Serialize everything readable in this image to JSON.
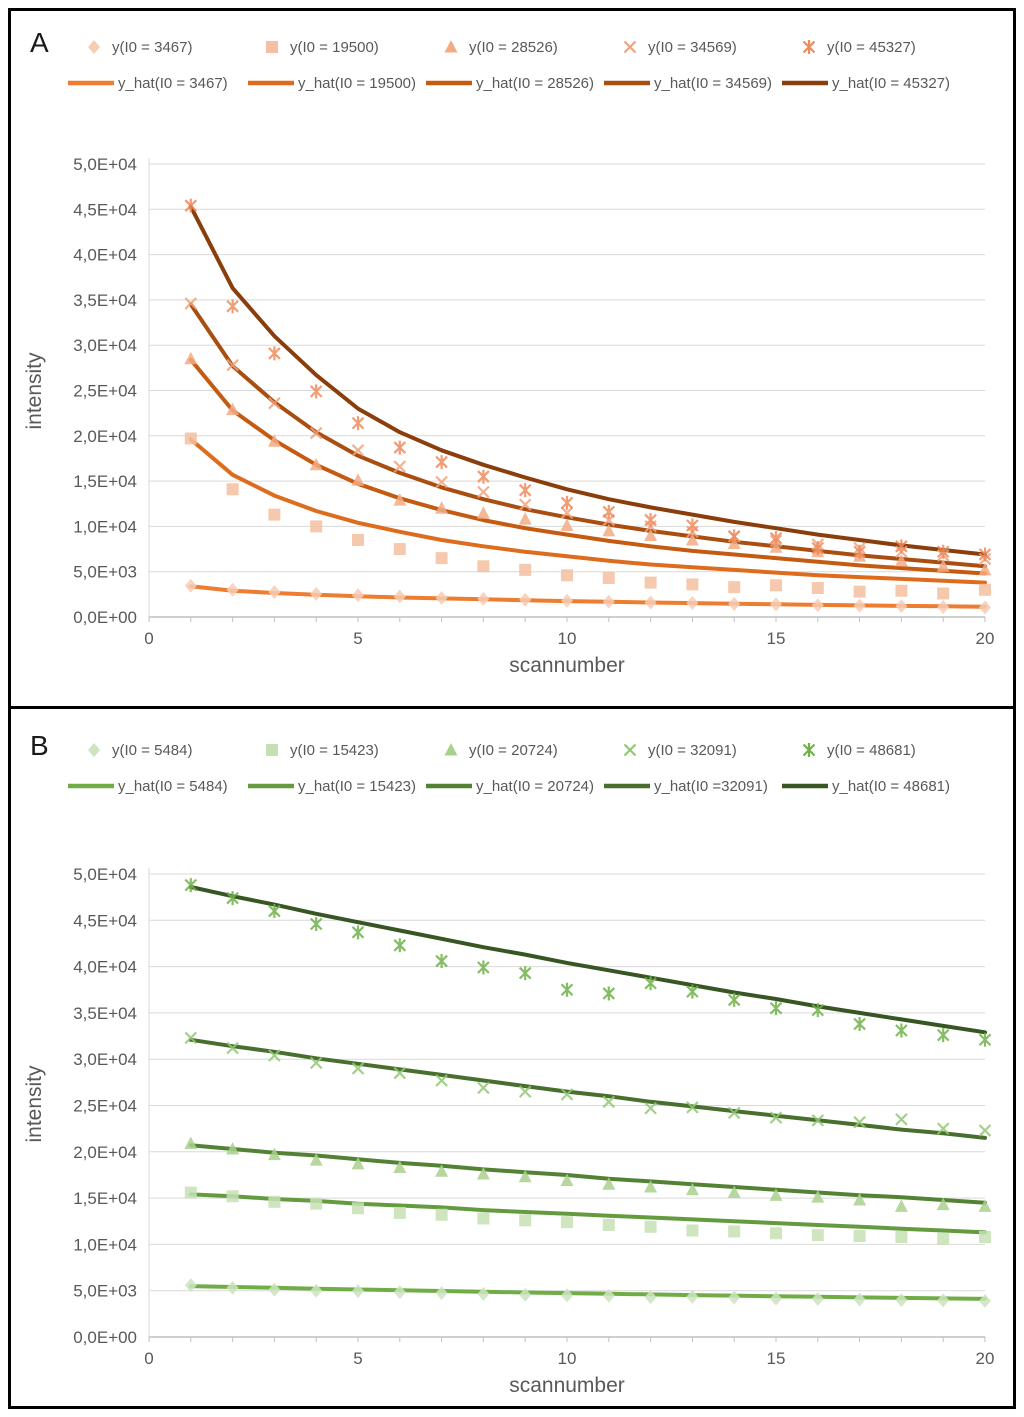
{
  "figure": {
    "background": "#ffffff",
    "frame_color": "#000000"
  },
  "chart_data": [
    {
      "panel_label": "A",
      "type": "scatter",
      "xlabel": "scannumber",
      "ylabel": "intensity",
      "x": [
        1,
        2,
        3,
        4,
        5,
        6,
        7,
        8,
        9,
        10,
        11,
        12,
        13,
        14,
        15,
        16,
        17,
        18,
        19,
        20
      ],
      "x_ticks": [
        0,
        5,
        10,
        15,
        20
      ],
      "xlim": [
        0,
        20
      ],
      "ylim": [
        0,
        50000
      ],
      "y_tick_step": 5000,
      "y_tick_labels": [
        "0,0E+00",
        "5,0E+03",
        "1,0E+04",
        "1,5E+04",
        "2,0E+04",
        "2,5E+04",
        "3,0E+04",
        "3,5E+04",
        "4,0E+04",
        "4,5E+04",
        "5,0E+04"
      ],
      "grid": true,
      "legend_position": "top",
      "colors": {
        "text": "#595959",
        "grid": "#D9D9D9",
        "axis": "#BFBFBF",
        "panel_label": "#1a1a1a"
      },
      "scatter_series": [
        {
          "name": "y(I0 = 3467)",
          "marker": "diamond",
          "color": "#F7CDB4",
          "values": [
            3450,
            3000,
            2750,
            2550,
            2400,
            2250,
            2100,
            2000,
            1900,
            1800,
            1700,
            1600,
            1550,
            1450,
            1400,
            1300,
            1250,
            1200,
            1100,
            1050
          ]
        },
        {
          "name": "y(I0 = 19500)",
          "marker": "square",
          "color": "#F5C0A0",
          "values": [
            19700,
            14100,
            11300,
            10000,
            8500,
            7500,
            6500,
            5600,
            5200,
            4600,
            4300,
            3800,
            3600,
            3300,
            3500,
            3200,
            2800,
            2900,
            2600,
            3000
          ]
        },
        {
          "name": "y(I0 = 28526)",
          "marker": "triangle",
          "color": "#F2AC85",
          "values": [
            28500,
            22900,
            19400,
            16800,
            15100,
            12900,
            12000,
            11450,
            10800,
            10100,
            9500,
            9000,
            8500,
            8100,
            7700,
            7200,
            6700,
            6200,
            5600,
            5200
          ]
        },
        {
          "name": "y(I0 = 34569)",
          "marker": "x",
          "color": "#F0A27B",
          "values": [
            34600,
            27800,
            23600,
            20300,
            18400,
            16600,
            14900,
            13800,
            12400,
            11500,
            10700,
            10000,
            9400,
            8900,
            8400,
            8000,
            7600,
            7200,
            6800,
            6400
          ]
        },
        {
          "name": "y(I0 = 45327)",
          "marker": "star",
          "color": "#ED8B5C",
          "values": [
            45400,
            34300,
            29100,
            24900,
            21400,
            18700,
            17100,
            15500,
            14000,
            12600,
            11600,
            10700,
            10100,
            8900,
            8700,
            7600,
            7200,
            7800,
            7200,
            6900
          ]
        }
      ],
      "fit_series": [
        {
          "name": "y_hat(I0 = 3467)",
          "color": "#ED7D31",
          "values": [
            3400,
            2900,
            2650,
            2450,
            2300,
            2150,
            2050,
            1950,
            1850,
            1760,
            1680,
            1600,
            1530,
            1460,
            1400,
            1340,
            1280,
            1230,
            1180,
            1130
          ]
        },
        {
          "name": "y_hat(I0 = 19500)",
          "color": "#DE6C1E",
          "values": [
            19600,
            15700,
            13400,
            11700,
            10400,
            9400,
            8500,
            7800,
            7200,
            6700,
            6200,
            5800,
            5500,
            5200,
            4900,
            4600,
            4400,
            4200,
            4000,
            3800
          ]
        },
        {
          "name": "y_hat(I0 = 28526)",
          "color": "#C55A11",
          "values": [
            28400,
            22800,
            19500,
            16800,
            14700,
            13100,
            11800,
            10700,
            9800,
            9100,
            8400,
            7800,
            7300,
            6900,
            6500,
            6100,
            5700,
            5400,
            5100,
            4800
          ]
        },
        {
          "name": "y_hat(I0 = 34569)",
          "color": "#A94E10",
          "values": [
            34500,
            27700,
            23700,
            20400,
            17800,
            15900,
            14300,
            13000,
            11900,
            11000,
            10200,
            9500,
            8900,
            8300,
            7800,
            7300,
            6800,
            6400,
            6000,
            5600
          ]
        },
        {
          "name": "y_hat(I0 = 45327)",
          "color": "#8A3E0C",
          "values": [
            45300,
            36300,
            31000,
            26700,
            23000,
            20400,
            18400,
            16800,
            15400,
            14100,
            13000,
            12100,
            11300,
            10500,
            9800,
            9100,
            8500,
            7900,
            7400,
            6900
          ]
        }
      ]
    },
    {
      "panel_label": "B",
      "type": "scatter",
      "xlabel": "scannumber",
      "ylabel": "intensity",
      "x": [
        1,
        2,
        3,
        4,
        5,
        6,
        7,
        8,
        9,
        10,
        11,
        12,
        13,
        14,
        15,
        16,
        17,
        18,
        19,
        20
      ],
      "x_ticks": [
        0,
        5,
        10,
        15,
        20
      ],
      "xlim": [
        0,
        20
      ],
      "ylim": [
        0,
        50000
      ],
      "y_tick_step": 5000,
      "y_tick_labels": [
        "0,0E+00",
        "5,0E+03",
        "1,0E+04",
        "1,5E+04",
        "2,0E+04",
        "2,5E+04",
        "3,0E+04",
        "3,5E+04",
        "4,0E+04",
        "4,5E+04",
        "5,0E+04"
      ],
      "grid": true,
      "legend_position": "top",
      "colors": {
        "text": "#595959",
        "grid": "#D9D9D9",
        "axis": "#BFBFBF",
        "panel_label": "#1a1a1a"
      },
      "scatter_series": [
        {
          "name": "y(I0 = 5484)",
          "marker": "diamond",
          "color": "#CDE4BF",
          "values": [
            5600,
            5300,
            5100,
            5000,
            4950,
            4850,
            4750,
            4650,
            4550,
            4500,
            4450,
            4300,
            4350,
            4250,
            4150,
            4100,
            4050,
            4000,
            3950,
            3900
          ]
        },
        {
          "name": "y(I0 = 15423)",
          "marker": "square",
          "color": "#C6E0B4",
          "values": [
            15600,
            15200,
            14600,
            14400,
            13900,
            13400,
            13200,
            12800,
            12600,
            12400,
            12100,
            11900,
            11500,
            11400,
            11200,
            11000,
            10900,
            10800,
            10600,
            10800
          ]
        },
        {
          "name": "y(I0 = 20724)",
          "marker": "triangle",
          "color": "#A9D18E",
          "values": [
            20900,
            20300,
            19700,
            19100,
            18700,
            18300,
            17900,
            17600,
            17300,
            16900,
            16500,
            16200,
            15900,
            15600,
            15300,
            15100,
            14800,
            14100,
            14300,
            14100
          ]
        },
        {
          "name": "y(I0 = 32091)",
          "marker": "x",
          "color": "#92C873",
          "values": [
            32300,
            31200,
            30400,
            29600,
            29000,
            28500,
            27700,
            26900,
            26500,
            26200,
            25400,
            24700,
            24800,
            24200,
            23700,
            23400,
            23200,
            23500,
            22500,
            22300
          ]
        },
        {
          "name": "y(I0 = 48681)",
          "marker": "star",
          "color": "#70B14A",
          "values": [
            48800,
            47400,
            46000,
            44600,
            43700,
            42300,
            40600,
            39900,
            39300,
            37500,
            37100,
            38200,
            37300,
            36400,
            35500,
            35300,
            33800,
            33100,
            32600,
            32100
          ]
        }
      ],
      "fit_series": [
        {
          "name": "y_hat(I0 = 5484)",
          "color": "#70AD47",
          "values": [
            5500,
            5400,
            5310,
            5220,
            5130,
            5050,
            4970,
            4890,
            4810,
            4740,
            4670,
            4600,
            4530,
            4470,
            4400,
            4340,
            4280,
            4220,
            4170,
            4110
          ]
        },
        {
          "name": "y_hat(I0 = 15423)",
          "color": "#649B3F",
          "values": [
            15400,
            15200,
            14900,
            14700,
            14400,
            14200,
            14000,
            13700,
            13500,
            13300,
            13100,
            12900,
            12700,
            12500,
            12300,
            12100,
            11900,
            11700,
            11500,
            11300
          ]
        },
        {
          "name": "y_hat(I0 = 20724)",
          "color": "#548235",
          "values": [
            20700,
            20300,
            19900,
            19600,
            19200,
            18800,
            18500,
            18100,
            17800,
            17500,
            17100,
            16800,
            16500,
            16200,
            15900,
            15600,
            15300,
            15100,
            14800,
            14500
          ]
        },
        {
          "name": "y_hat(I0 =32091)",
          "color": "#486F2E",
          "values": [
            32100,
            31400,
            30800,
            30100,
            29500,
            28900,
            28300,
            27700,
            27100,
            26500,
            26000,
            25400,
            24900,
            24400,
            23900,
            23400,
            22900,
            22400,
            22000,
            21500
          ]
        },
        {
          "name": "y_hat(I0 = 48681)",
          "color": "#375623",
          "values": [
            48600,
            47600,
            46700,
            45700,
            44800,
            43900,
            43000,
            42100,
            41300,
            40400,
            39600,
            38800,
            38000,
            37200,
            36500,
            35700,
            35000,
            34300,
            33600,
            32900
          ]
        }
      ]
    }
  ]
}
